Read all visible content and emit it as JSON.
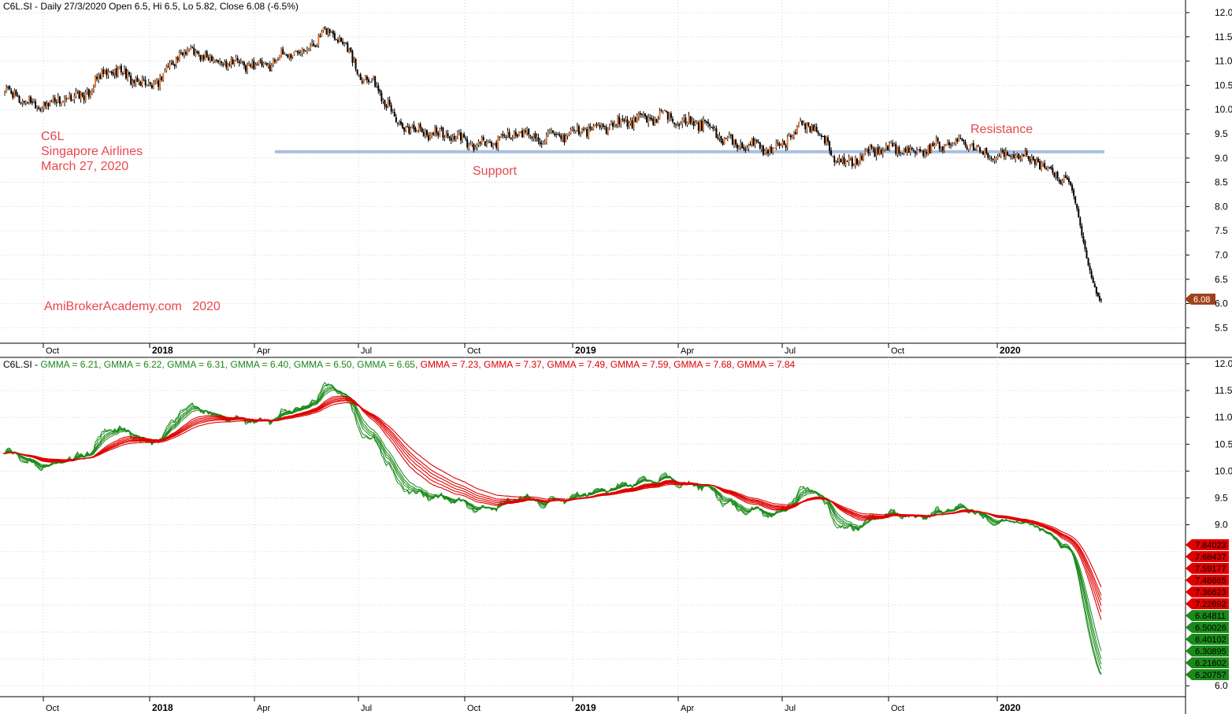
{
  "price_panel": {
    "header": "C6L.SI - Daily 27/3/2020 Open 6.5, Hi 6.5, Lo 5.82, Close 6.08 (-6.5%)",
    "last_price_tag": "6.08",
    "annotations": {
      "ticker": "C6L",
      "company": "Singapore Airlines",
      "date": "March 27, 2020",
      "watermark": "AmiBrokerAcademy.com   2020",
      "support_label": "Support",
      "resistance_label": "Resistance"
    }
  },
  "gmma_panel": {
    "header_prefix": "C6L.SI - ",
    "short_values": [
      "6.21",
      "6.22",
      "6.31",
      "6.40",
      "6.50",
      "6.65"
    ],
    "long_values": [
      "7.23",
      "7.37",
      "7.49",
      "7.59",
      "7.68",
      "7.84"
    ],
    "label": "GMMA",
    "badges_long": [
      "7.84023",
      "7.68437",
      "7.59177",
      "7.48665",
      "7.36623",
      "7.22692"
    ],
    "badges_short": [
      "6.64811",
      "6.50026",
      "6.40102",
      "6.30895",
      "6.21602",
      "6.20757"
    ]
  },
  "colors": {
    "short": "#1a8a1a",
    "long": "#e00000",
    "annotation": "#e8474d",
    "support_line": "#a9bfe0",
    "badge_price": "#a0411e"
  },
  "chart_data": {
    "type": "line",
    "title": "C6L.SI - Daily 27/3/2020 Open 6.5, Hi 6.5, Lo 5.82, Close 6.08 (-6.5%)",
    "x_tick_labels": [
      "Oct",
      "2018",
      "Apr",
      "Jul",
      "Oct",
      "2019",
      "Apr",
      "Jul",
      "Oct",
      "2020"
    ],
    "y_tick_labels_price": [
      "12.0",
      "11.5",
      "11.0",
      "10.5",
      "10.0",
      "9.5",
      "9.0",
      "8.5",
      "8.0",
      "7.5",
      "7.0",
      "6.5",
      "6.0",
      "5.5"
    ],
    "y_tick_labels_gmma": [
      "12.0",
      "11.5",
      "11.0",
      "10.5",
      "10.0",
      "9.5",
      "9.0",
      "6.0"
    ],
    "price_ylim": [
      5.2,
      12.1
    ],
    "support_level": 9.13,
    "close_series": [
      [
        "Sep 2017",
        10.35
      ],
      [
        "Oct 2017",
        10.1
      ],
      [
        "Nov 2017",
        10.25
      ],
      [
        "Dec 2017",
        10.8
      ],
      [
        "Jan 2018",
        10.5
      ],
      [
        "Feb 2018",
        11.2
      ],
      [
        "Mar 2018",
        11.0
      ],
      [
        "Apr 2018",
        10.9
      ],
      [
        "May 2018",
        11.2
      ],
      [
        "Jun 2018",
        11.6
      ],
      [
        "Jul 2018",
        10.6
      ],
      [
        "Aug 2018",
        9.6
      ],
      [
        "Sep 2018",
        9.5
      ],
      [
        "Oct 2018",
        9.25
      ],
      [
        "Nov 2018",
        9.5
      ],
      [
        "Dec 2018",
        9.4
      ],
      [
        "Jan 2019",
        9.6
      ],
      [
        "Feb 2019",
        9.75
      ],
      [
        "Mar 2019",
        9.85
      ],
      [
        "Apr 2019",
        9.7
      ],
      [
        "May 2019",
        9.3
      ],
      [
        "Jun 2019",
        9.2
      ],
      [
        "Jul 2019",
        9.7
      ],
      [
        "Aug 2019",
        8.9
      ],
      [
        "Sep 2019",
        9.2
      ],
      [
        "Oct 2019",
        9.15
      ],
      [
        "Nov 2019",
        9.35
      ],
      [
        "Dec 2019",
        9.1
      ],
      [
        "Jan 2020",
        9.0
      ],
      [
        "Feb 2020",
        8.6
      ],
      [
        "Mar 2020",
        6.08
      ]
    ],
    "series": [
      {
        "name": "GMMA",
        "group": "short",
        "last": 6.21
      },
      {
        "name": "GMMA",
        "group": "short",
        "last": 6.22
      },
      {
        "name": "GMMA",
        "group": "short",
        "last": 6.31
      },
      {
        "name": "GMMA",
        "group": "short",
        "last": 6.4
      },
      {
        "name": "GMMA",
        "group": "short",
        "last": 6.5
      },
      {
        "name": "GMMA",
        "group": "short",
        "last": 6.65
      },
      {
        "name": "GMMA",
        "group": "long",
        "last": 7.23
      },
      {
        "name": "GMMA",
        "group": "long",
        "last": 7.37
      },
      {
        "name": "GMMA",
        "group": "long",
        "last": 7.49
      },
      {
        "name": "GMMA",
        "group": "long",
        "last": 7.59
      },
      {
        "name": "GMMA",
        "group": "long",
        "last": 7.68
      },
      {
        "name": "GMMA",
        "group": "long",
        "last": 7.84
      }
    ]
  }
}
